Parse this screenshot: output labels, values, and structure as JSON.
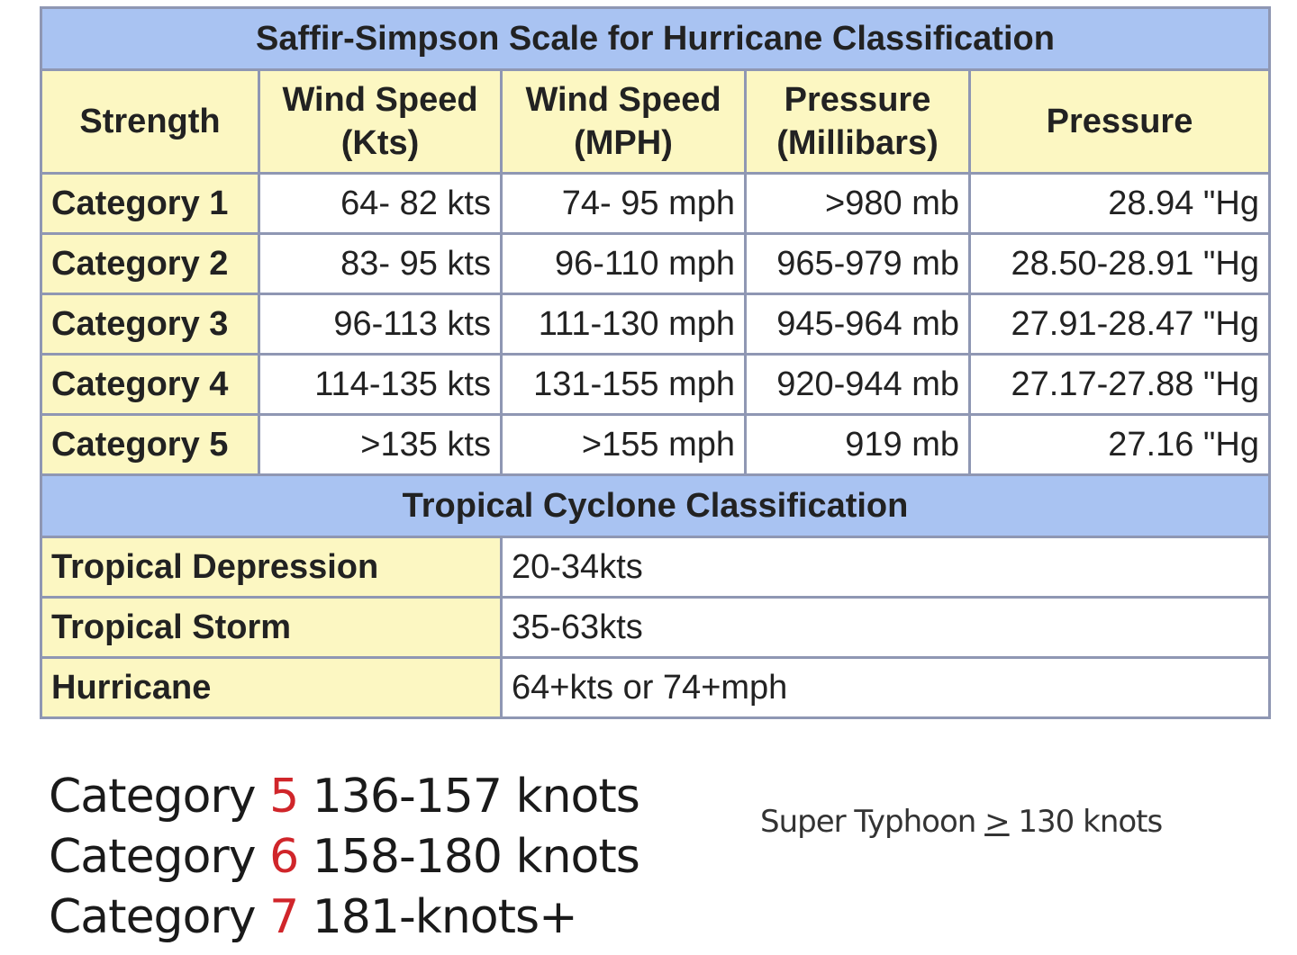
{
  "title": "Saffir-Simpson Scale for Hurricane Classification",
  "headers": [
    "Strength",
    "Wind Speed (Kts)",
    "Wind Speed (MPH)",
    "Pressure (Millibars)",
    "Pressure"
  ],
  "rows": [
    [
      "Category 1",
      "64- 82 kts",
      "74- 95 mph",
      ">980 mb",
      "28.94 \"Hg"
    ],
    [
      "Category 2",
      "83- 95 kts",
      "96-110 mph",
      "965-979 mb",
      "28.50-28.91 \"Hg"
    ],
    [
      "Category 3",
      "96-113 kts",
      "111-130 mph",
      "945-964 mb",
      "27.91-28.47 \"Hg"
    ],
    [
      "Category 4",
      "114-135 kts",
      "131-155 mph",
      "920-944 mb",
      "27.17-27.88 \"Hg"
    ],
    [
      "Category 5",
      ">135 kts",
      ">155 mph",
      "919 mb",
      "27.16 \"Hg"
    ]
  ],
  "tropical_title": "Tropical Cyclone Classification",
  "tropical_rows": [
    [
      "Tropical Depression",
      "20-34kts"
    ],
    [
      "Tropical Storm",
      "35-63kts"
    ],
    [
      "Hurricane",
      "64+kts or 74+mph"
    ]
  ],
  "extra_categories": [
    {
      "label": "Category",
      "num": "5",
      "range": "136-157 knots"
    },
    {
      "label": "Category",
      "num": "6",
      "range": "158-180 knots"
    },
    {
      "label": "Category",
      "num": "7",
      "range": "181-knots+"
    }
  ],
  "super_typhoon": {
    "label": "Super Typhoon",
    "symbol": ">",
    "value": "130 knots"
  },
  "colors": {
    "title_bg": "#a9c3f2",
    "header_bg": "#fcf7c2",
    "border": "#8f97b3",
    "accent_red": "#d0252a"
  }
}
